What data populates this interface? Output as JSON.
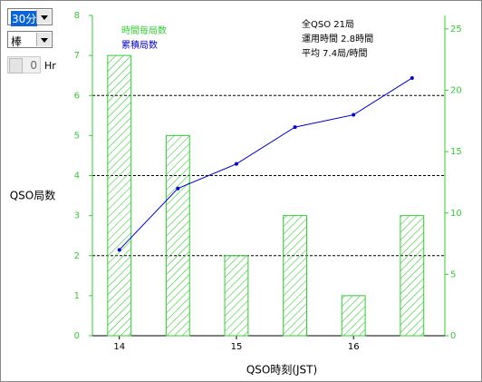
{
  "controls": {
    "interval": "30分",
    "style": "棒",
    "offset": "0",
    "offset_unit": "Hr"
  },
  "chart_data": {
    "type": "bar",
    "x": [
      14,
      14.5,
      15,
      15.5,
      16,
      16.5
    ],
    "xlim": [
      13.77,
      16.78
    ],
    "xticks": [
      14,
      15,
      16
    ],
    "ylim": [
      0,
      8
    ],
    "yticks": [
      0,
      1,
      2,
      3,
      4,
      5,
      6,
      7,
      8
    ],
    "y2lim": [
      0,
      26.1
    ],
    "y2ticks": [
      0,
      5,
      10,
      15,
      20,
      25
    ],
    "gridlines": [
      2,
      4,
      6
    ],
    "xlabel": "QSO時刻(JST)",
    "ylabel": "QSO局数",
    "series": [
      {
        "name": "時間毎局数",
        "color": "#33cc33",
        "values": [
          7,
          5,
          2,
          3,
          1,
          3
        ]
      },
      {
        "name": "累積局数",
        "color": "#0000cc",
        "values": [
          7,
          12,
          14,
          17,
          18,
          21
        ],
        "axis": "y2",
        "type": "line"
      }
    ],
    "annotations": [
      "全QSO 21局",
      "運用時間 2.8時間",
      "平均 7.4局/時間"
    ]
  }
}
